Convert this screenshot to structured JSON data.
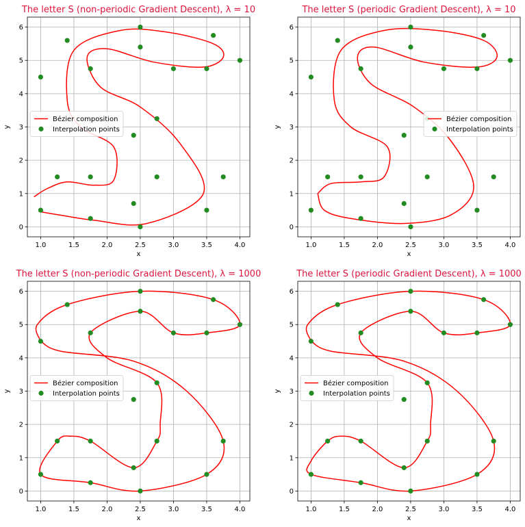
{
  "colors": {
    "curve": "#ff0000",
    "points": "#228b22",
    "title": "#dc143c",
    "grid": "#b0b0b0"
  },
  "chart_data": [
    {
      "type": "line",
      "title": "The letter S (non-periodic Gradient Descent), λ = 10",
      "xlabel": "x",
      "ylabel": "y",
      "xlim": [
        0.8,
        4.15
      ],
      "ylim": [
        -0.3,
        6.3
      ],
      "xticks": [
        "1.0",
        "1.5",
        "2.0",
        "2.5",
        "3.0",
        "3.5",
        "4.0"
      ],
      "yticks": [
        "0",
        "1",
        "2",
        "3",
        "4",
        "5",
        "6"
      ],
      "grid": true,
      "legend": "center-left",
      "legend_entries": [
        "Bézier composition",
        "Interpolation points"
      ],
      "curve": [
        [
          0.9,
          0.9
        ],
        [
          1.1,
          1.15
        ],
        [
          1.4,
          1.35
        ],
        [
          1.8,
          1.25
        ],
        [
          2.1,
          1.4
        ],
        [
          2.1,
          2.4
        ],
        [
          1.6,
          3.0
        ],
        [
          1.4,
          3.8
        ],
        [
          1.5,
          5.3
        ],
        [
          2.2,
          5.9
        ],
        [
          2.9,
          5.85
        ],
        [
          3.6,
          5.5
        ],
        [
          3.75,
          5.1
        ],
        [
          3.45,
          4.8
        ],
        [
          2.7,
          4.95
        ],
        [
          2.0,
          5.35
        ],
        [
          1.7,
          5.1
        ],
        [
          1.9,
          4.2
        ],
        [
          2.5,
          3.6
        ],
        [
          3.1,
          2.5
        ],
        [
          3.45,
          1.0
        ],
        [
          2.6,
          0.1
        ],
        [
          1.8,
          0.2
        ],
        [
          1.3,
          0.35
        ],
        [
          1.0,
          0.45
        ]
      ],
      "points": [
        [
          1.0,
          0.5
        ],
        [
          1.75,
          0.25
        ],
        [
          2.5,
          0.0
        ],
        [
          3.5,
          0.5
        ],
        [
          3.75,
          1.5
        ],
        [
          2.75,
          1.5
        ],
        [
          2.4,
          0.7
        ],
        [
          1.75,
          1.5
        ],
        [
          1.25,
          1.5
        ],
        [
          2.4,
          2.75
        ],
        [
          2.75,
          3.25
        ],
        [
          1.0,
          4.5
        ],
        [
          1.75,
          4.75
        ],
        [
          1.4,
          5.6
        ],
        [
          2.5,
          6.0
        ],
        [
          3.6,
          5.75
        ],
        [
          4.0,
          5.0
        ],
        [
          3.5,
          4.75
        ],
        [
          3.0,
          4.75
        ],
        [
          2.5,
          5.4
        ]
      ]
    },
    {
      "type": "line",
      "title": "The letter S (periodic Gradient Descent), λ = 10",
      "xlabel": "x",
      "ylabel": "y",
      "xlim": [
        0.8,
        4.15
      ],
      "ylim": [
        -0.3,
        6.3
      ],
      "xticks": [
        "1.0",
        "1.5",
        "2.0",
        "2.5",
        "3.0",
        "3.5",
        "4.0"
      ],
      "yticks": [
        "0",
        "1",
        "2",
        "3",
        "4",
        "5",
        "6"
      ],
      "grid": true,
      "legend": "center-right",
      "legend_entries": [
        "Bézier composition",
        "Interpolation points"
      ],
      "curve": [
        [
          1.1,
          1.0
        ],
        [
          1.3,
          1.3
        ],
        [
          1.75,
          1.35
        ],
        [
          2.1,
          1.5
        ],
        [
          2.15,
          2.4
        ],
        [
          1.6,
          3.0
        ],
        [
          1.35,
          3.8
        ],
        [
          1.45,
          5.3
        ],
        [
          2.1,
          5.9
        ],
        [
          2.9,
          5.9
        ],
        [
          3.6,
          5.6
        ],
        [
          3.8,
          5.1
        ],
        [
          3.5,
          4.8
        ],
        [
          2.7,
          4.95
        ],
        [
          1.95,
          5.4
        ],
        [
          1.7,
          5.1
        ],
        [
          1.9,
          4.3
        ],
        [
          2.55,
          3.6
        ],
        [
          3.1,
          2.6
        ],
        [
          3.45,
          1.2
        ],
        [
          3.1,
          0.35
        ],
        [
          2.4,
          0.1
        ],
        [
          1.6,
          0.25
        ],
        [
          1.2,
          0.5
        ],
        [
          1.1,
          1.0
        ]
      ],
      "points": [
        [
          1.0,
          0.5
        ],
        [
          1.75,
          0.25
        ],
        [
          2.5,
          0.0
        ],
        [
          3.5,
          0.5
        ],
        [
          3.75,
          1.5
        ],
        [
          2.75,
          1.5
        ],
        [
          2.4,
          0.7
        ],
        [
          1.75,
          1.5
        ],
        [
          1.25,
          1.5
        ],
        [
          2.4,
          2.75
        ],
        [
          2.75,
          3.25
        ],
        [
          1.0,
          4.5
        ],
        [
          1.75,
          4.75
        ],
        [
          1.4,
          5.6
        ],
        [
          2.5,
          6.0
        ],
        [
          3.6,
          5.75
        ],
        [
          4.0,
          5.0
        ],
        [
          3.5,
          4.75
        ],
        [
          3.0,
          4.75
        ],
        [
          2.5,
          5.4
        ]
      ]
    },
    {
      "type": "line",
      "title": "The letter S (non-periodic Gradient Descent), λ = 1000",
      "xlabel": "x",
      "ylabel": "y",
      "xlim": [
        0.8,
        4.15
      ],
      "ylim": [
        -0.3,
        6.3
      ],
      "xticks": [
        "1.0",
        "1.5",
        "2.0",
        "2.5",
        "3.0",
        "3.5",
        "4.0"
      ],
      "yticks": [
        "0",
        "1",
        "2",
        "3",
        "4",
        "5",
        "6"
      ],
      "grid": true,
      "legend": "center-left",
      "legend_entries": [
        "Bézier composition",
        "Interpolation points"
      ],
      "curve": [
        [
          1.0,
          4.5
        ],
        [
          0.95,
          5.0
        ],
        [
          1.4,
          5.6
        ],
        [
          2.5,
          6.0
        ],
        [
          3.6,
          5.75
        ],
        [
          4.0,
          5.0
        ],
        [
          3.5,
          4.75
        ],
        [
          3.0,
          4.75
        ],
        [
          2.5,
          5.4
        ],
        [
          1.75,
          4.75
        ],
        [
          2.0,
          4.0
        ],
        [
          2.75,
          3.25
        ],
        [
          2.8,
          2.0
        ],
        [
          2.75,
          1.5
        ],
        [
          2.4,
          0.7
        ],
        [
          1.75,
          1.5
        ],
        [
          1.45,
          1.65
        ],
        [
          1.25,
          1.5
        ],
        [
          1.0,
          0.5
        ],
        [
          1.75,
          0.25
        ],
        [
          2.5,
          0.0
        ],
        [
          3.5,
          0.5
        ],
        [
          3.75,
          1.5
        ],
        [
          3.2,
          3.0
        ],
        [
          2.4,
          3.9
        ],
        [
          1.3,
          4.2
        ],
        [
          1.0,
          4.5
        ]
      ],
      "points": [
        [
          1.0,
          0.5
        ],
        [
          1.75,
          0.25
        ],
        [
          2.5,
          0.0
        ],
        [
          3.5,
          0.5
        ],
        [
          3.75,
          1.5
        ],
        [
          2.75,
          1.5
        ],
        [
          2.4,
          0.7
        ],
        [
          1.75,
          1.5
        ],
        [
          1.25,
          1.5
        ],
        [
          2.4,
          2.75
        ],
        [
          2.75,
          3.25
        ],
        [
          1.0,
          4.5
        ],
        [
          1.75,
          4.75
        ],
        [
          1.4,
          5.6
        ],
        [
          2.5,
          6.0
        ],
        [
          3.6,
          5.75
        ],
        [
          4.0,
          5.0
        ],
        [
          3.5,
          4.75
        ],
        [
          3.0,
          4.75
        ],
        [
          2.5,
          5.4
        ]
      ]
    },
    {
      "type": "line",
      "title": "The letter S (periodic Gradient Descent), λ = 1000",
      "xlabel": "x",
      "ylabel": "y",
      "xlim": [
        0.8,
        4.15
      ],
      "ylim": [
        -0.3,
        6.3
      ],
      "xticks": [
        "1.0",
        "1.5",
        "2.0",
        "2.5",
        "3.0",
        "3.5",
        "4.0"
      ],
      "yticks": [
        "0",
        "1",
        "2",
        "3",
        "4",
        "5",
        "6"
      ],
      "grid": true,
      "legend": "center-left",
      "legend_entries": [
        "Bézier composition",
        "Interpolation points"
      ],
      "curve": [
        [
          1.0,
          4.5
        ],
        [
          0.95,
          5.0
        ],
        [
          1.4,
          5.6
        ],
        [
          2.5,
          6.0
        ],
        [
          3.6,
          5.75
        ],
        [
          4.0,
          5.0
        ],
        [
          3.5,
          4.75
        ],
        [
          3.0,
          4.75
        ],
        [
          2.5,
          5.4
        ],
        [
          1.75,
          4.75
        ],
        [
          2.0,
          4.0
        ],
        [
          2.75,
          3.25
        ],
        [
          2.8,
          2.0
        ],
        [
          2.75,
          1.5
        ],
        [
          2.4,
          0.7
        ],
        [
          1.75,
          1.5
        ],
        [
          1.45,
          1.65
        ],
        [
          1.25,
          1.5
        ],
        [
          1.0,
          0.9
        ],
        [
          1.0,
          0.5
        ],
        [
          1.75,
          0.25
        ],
        [
          2.5,
          0.0
        ],
        [
          3.5,
          0.5
        ],
        [
          3.75,
          1.5
        ],
        [
          3.2,
          3.0
        ],
        [
          2.4,
          3.9
        ],
        [
          1.3,
          4.2
        ],
        [
          1.0,
          4.5
        ]
      ],
      "points": [
        [
          1.0,
          0.5
        ],
        [
          1.75,
          0.25
        ],
        [
          2.5,
          0.0
        ],
        [
          3.5,
          0.5
        ],
        [
          3.75,
          1.5
        ],
        [
          2.75,
          1.5
        ],
        [
          2.4,
          0.7
        ],
        [
          1.75,
          1.5
        ],
        [
          1.25,
          1.5
        ],
        [
          2.4,
          2.75
        ],
        [
          2.75,
          3.25
        ],
        [
          1.0,
          4.5
        ],
        [
          1.75,
          4.75
        ],
        [
          1.4,
          5.6
        ],
        [
          2.5,
          6.0
        ],
        [
          3.6,
          5.75
        ],
        [
          4.0,
          5.0
        ],
        [
          3.5,
          4.75
        ],
        [
          3.0,
          4.75
        ],
        [
          2.5,
          5.4
        ]
      ]
    }
  ]
}
